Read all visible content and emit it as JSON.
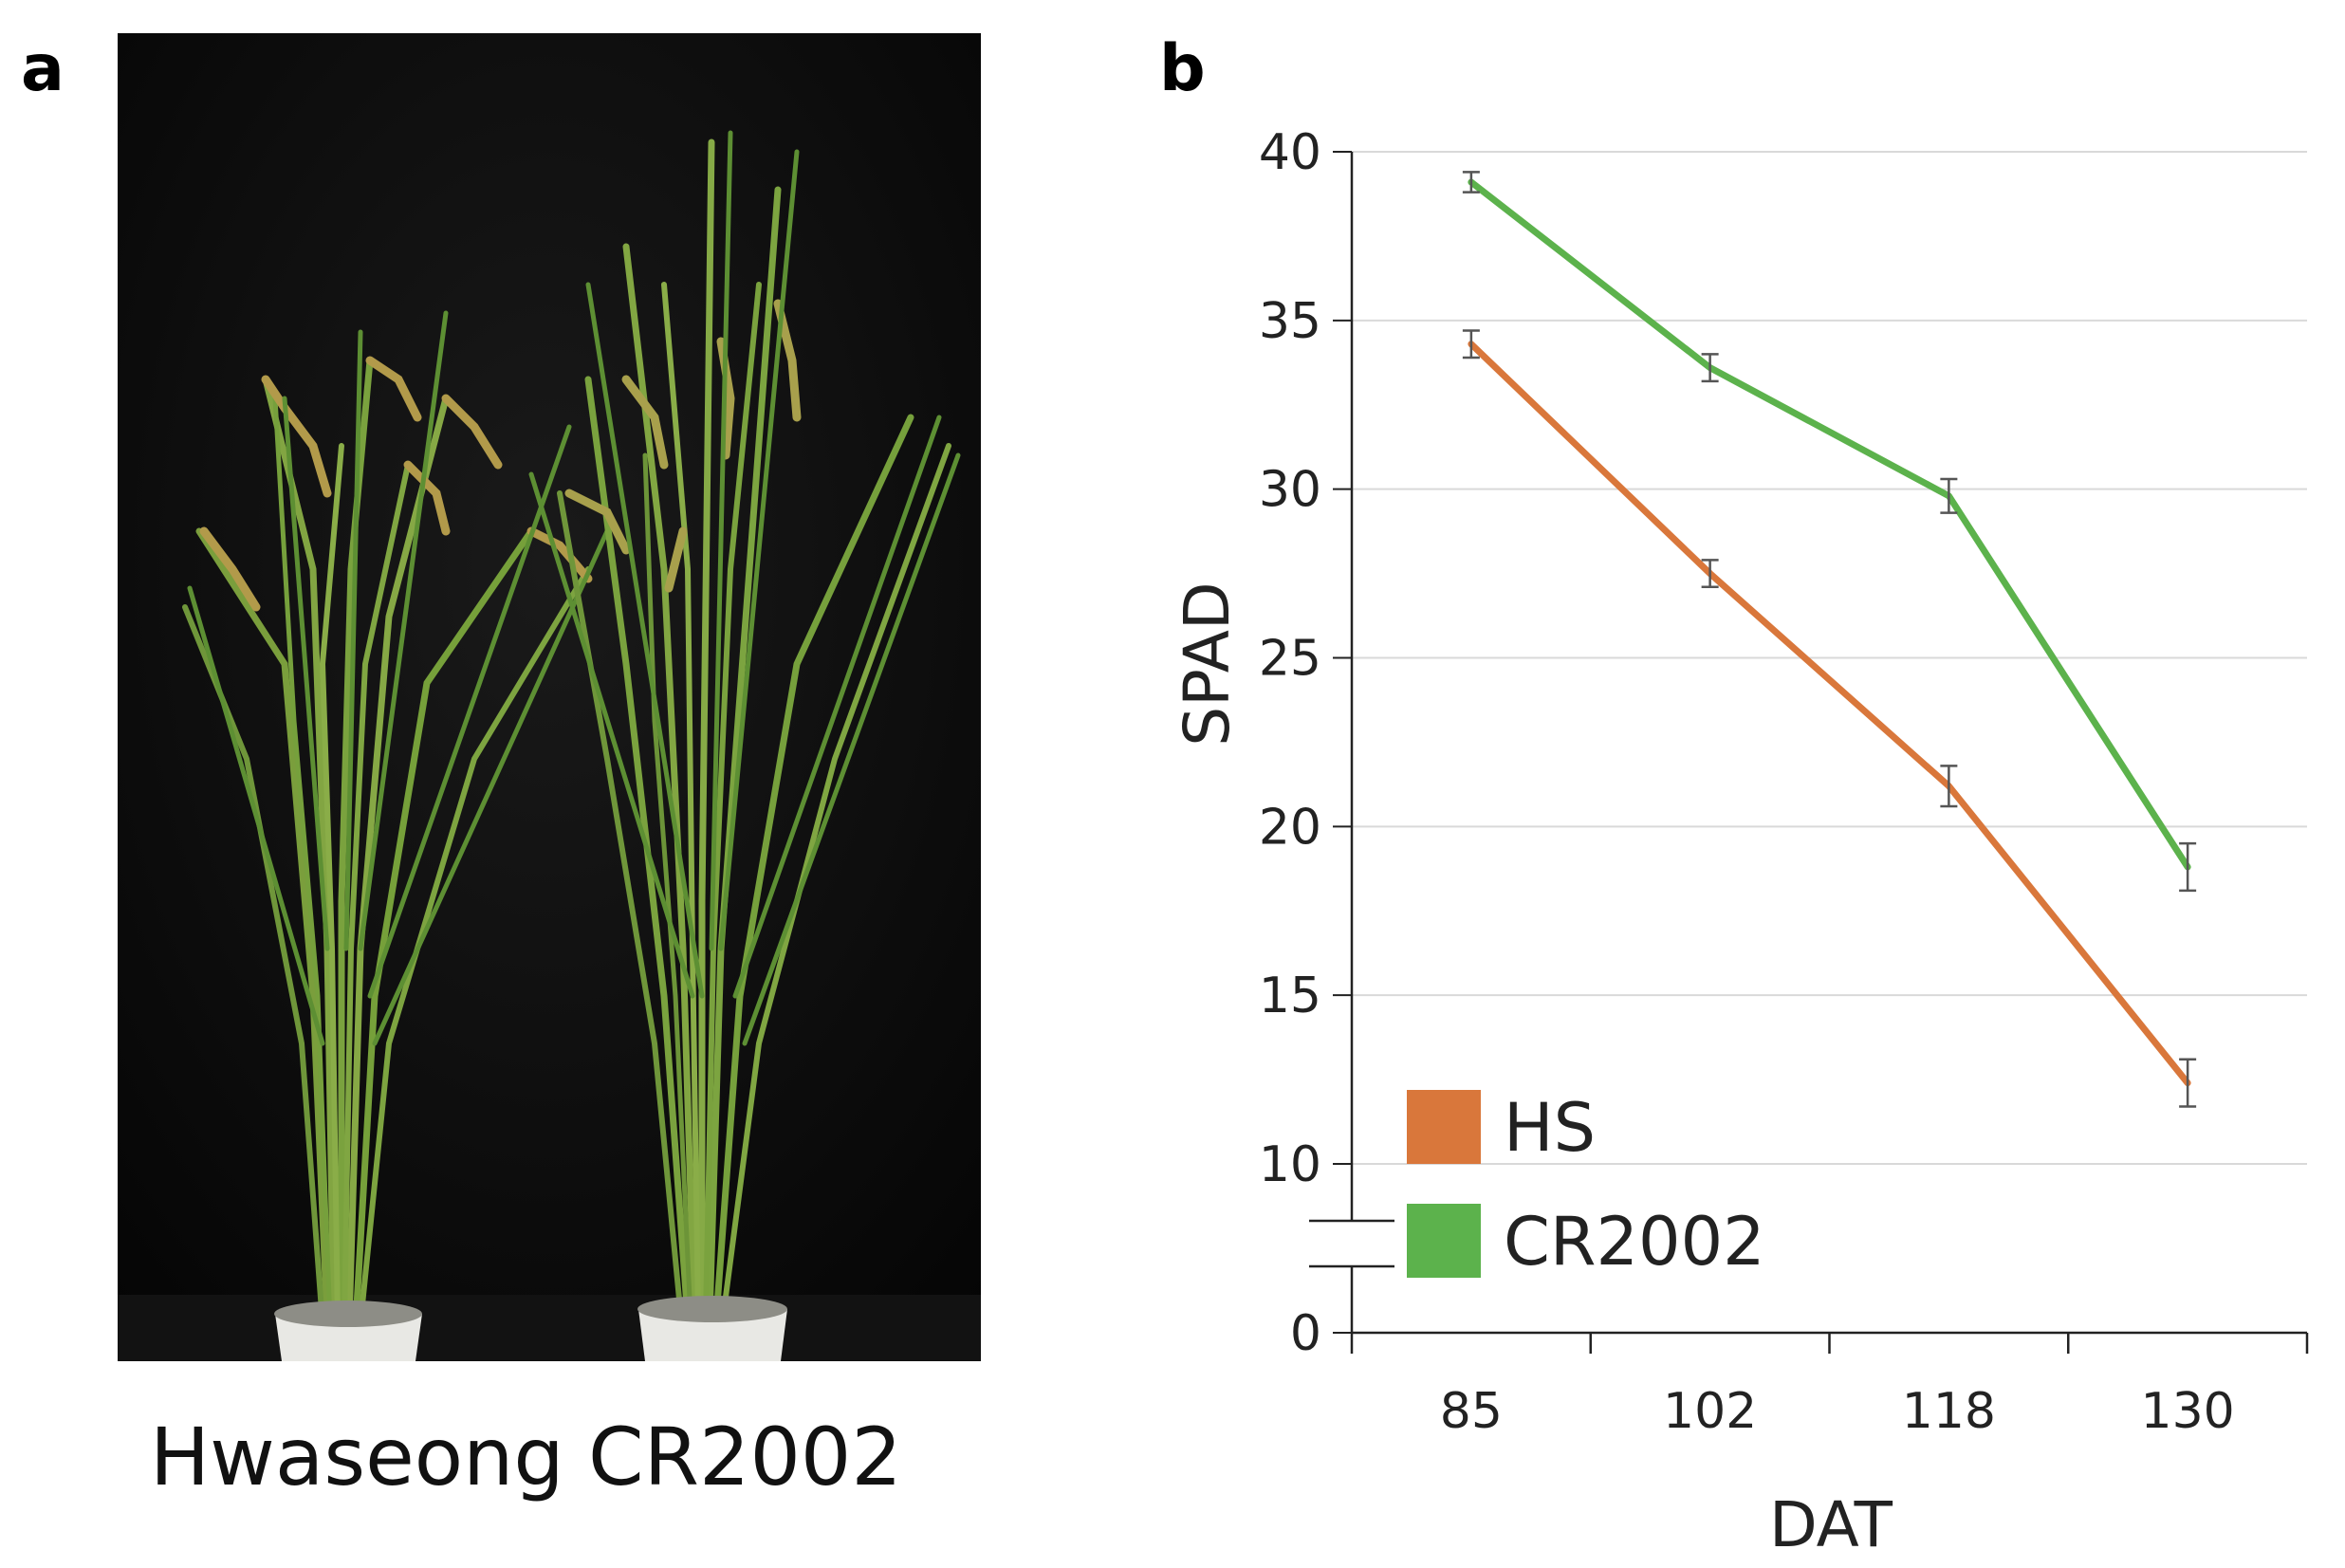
{
  "panel_a": {
    "letter": "a",
    "labels": [
      "Hwaseong",
      "CR2002"
    ]
  },
  "panel_b": {
    "letter": "b"
  },
  "colors": {
    "hs": "#d9773b",
    "cr2002": "#5cb24c",
    "grid": "#d9d9d9",
    "axis": "#222222",
    "error": "#555555"
  },
  "chart_data": {
    "type": "line",
    "title": "",
    "xlabel": "DAT",
    "ylabel": "SPAD",
    "categories": [
      "85",
      "102",
      "118",
      "130"
    ],
    "ylim": [
      0,
      40
    ],
    "y_axis_break": [
      0,
      10
    ],
    "yticks": [
      0,
      10,
      15,
      20,
      25,
      30,
      35,
      40
    ],
    "grid": true,
    "legend_position": "bottom-left",
    "series": [
      {
        "name": "HS",
        "color_key": "hs",
        "values": [
          34.3,
          27.5,
          21.2,
          12.4
        ],
        "errors": [
          0.4,
          0.4,
          0.6,
          0.7
        ]
      },
      {
        "name": "CR2002",
        "color_key": "cr2002",
        "values": [
          39.1,
          33.6,
          29.8,
          18.8
        ],
        "errors": [
          0.3,
          0.4,
          0.5,
          0.7
        ]
      }
    ]
  }
}
